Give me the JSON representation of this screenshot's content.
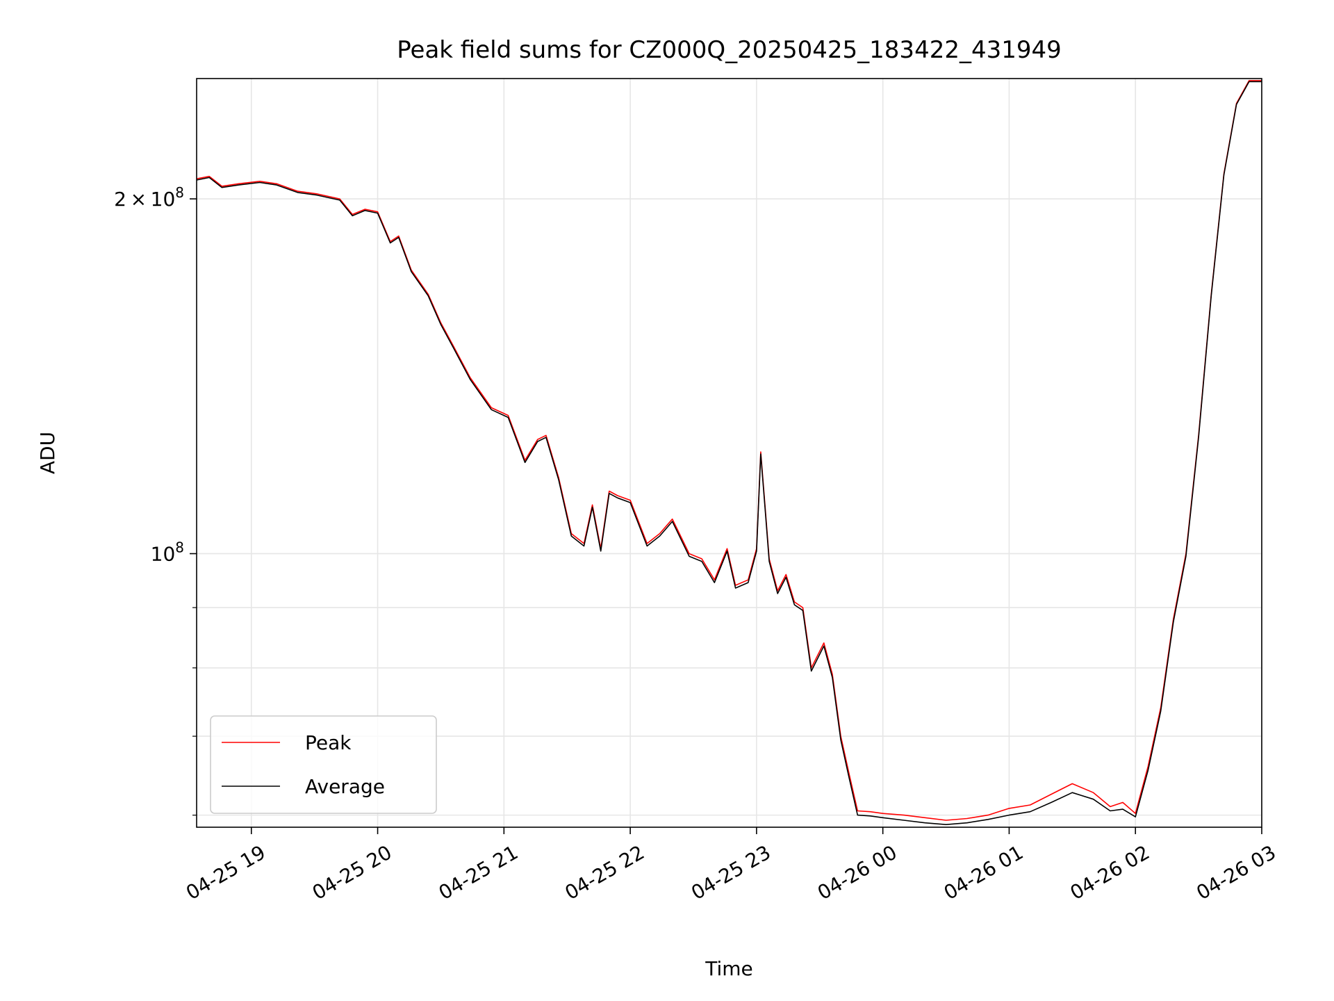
{
  "chart_data": {
    "type": "line",
    "title": "Peak field sums for CZ000Q_20250425_183422_431949",
    "xlabel": "Time",
    "ylabel": "ADU",
    "x_unit": "date-time (YYYY-MM-DD HH:MM)",
    "y_scale": "log",
    "xlim": [
      "2025-04-25 18:34",
      "2025-04-26 03:00"
    ],
    "ylim": [
      58600000,
      253000000
    ],
    "x_tick_labels": [
      "04-25 19",
      "04-25 20",
      "04-25 21",
      "04-25 22",
      "04-25 23",
      "04-26 00",
      "04-26 01",
      "04-26 02",
      "04-26 03"
    ],
    "x_ticks": [
      "2025-04-25 19:00",
      "2025-04-25 20:00",
      "2025-04-25 21:00",
      "2025-04-25 22:00",
      "2025-04-25 23:00",
      "2025-04-26 00:00",
      "2025-04-26 01:00",
      "2025-04-26 02:00",
      "2025-04-26 03:00"
    ],
    "y_major_ticks": [
      {
        "value": 100000000,
        "mantissa": "",
        "exponent": "8"
      },
      {
        "value": 200000000,
        "mantissa": "2",
        "exponent": "8"
      }
    ],
    "y_minor_ticks": [
      60000000,
      70000000,
      80000000,
      90000000
    ],
    "grid": true,
    "legend_position": "lower-left",
    "series": [
      {
        "name": "Peak",
        "color": "#ff0000",
        "x": [
          "2025-04-25 18:34",
          "2025-04-25 18:40",
          "2025-04-25 18:46",
          "2025-04-25 18:54",
          "2025-04-25 19:04",
          "2025-04-25 19:12",
          "2025-04-25 19:22",
          "2025-04-25 19:31",
          "2025-04-25 19:42",
          "2025-04-25 19:48",
          "2025-04-25 19:54",
          "2025-04-25 20:00",
          "2025-04-25 20:06",
          "2025-04-25 20:10",
          "2025-04-25 20:16",
          "2025-04-25 20:24",
          "2025-04-25 20:30",
          "2025-04-25 20:36",
          "2025-04-25 20:44",
          "2025-04-25 20:54",
          "2025-04-25 21:02",
          "2025-04-25 21:10",
          "2025-04-25 21:16",
          "2025-04-25 21:20",
          "2025-04-25 21:26",
          "2025-04-25 21:32",
          "2025-04-25 21:38",
          "2025-04-25 21:42",
          "2025-04-25 21:46",
          "2025-04-25 21:50",
          "2025-04-25 21:54",
          "2025-04-25 22:00",
          "2025-04-25 22:08",
          "2025-04-25 22:14",
          "2025-04-25 22:20",
          "2025-04-25 22:28",
          "2025-04-25 22:34",
          "2025-04-25 22:40",
          "2025-04-25 22:46",
          "2025-04-25 22:50",
          "2025-04-25 22:56",
          "2025-04-25 23:00",
          "2025-04-25 23:02",
          "2025-04-25 23:04",
          "2025-04-25 23:06",
          "2025-04-25 23:10",
          "2025-04-25 23:14",
          "2025-04-25 23:18",
          "2025-04-25 23:22",
          "2025-04-25 23:26",
          "2025-04-25 23:32",
          "2025-04-25 23:36",
          "2025-04-25 23:40",
          "2025-04-25 23:44",
          "2025-04-25 23:48",
          "2025-04-25 23:54",
          "2025-04-26 00:00",
          "2025-04-26 00:10",
          "2025-04-26 00:20",
          "2025-04-26 00:30",
          "2025-04-26 00:40",
          "2025-04-26 00:50",
          "2025-04-26 01:00",
          "2025-04-26 01:10",
          "2025-04-26 01:20",
          "2025-04-26 01:30",
          "2025-04-26 01:40",
          "2025-04-26 01:48",
          "2025-04-26 01:54",
          "2025-04-26 02:00",
          "2025-04-26 02:06",
          "2025-04-26 02:12",
          "2025-04-26 02:18",
          "2025-04-26 02:24",
          "2025-04-26 02:30",
          "2025-04-26 02:36",
          "2025-04-26 02:42",
          "2025-04-26 02:48",
          "2025-04-26 02:54",
          "2025-04-26 03:00"
        ],
        "y": [
          208000000,
          209000000,
          205000000,
          206000000,
          207000000,
          206000000,
          203000000,
          202000000,
          200000000,
          194000000,
          196000000,
          195000000,
          184000000,
          186000000,
          174000000,
          166000000,
          157000000,
          150000000,
          141000000,
          133000000,
          131000000,
          120000000,
          125000000,
          126000000,
          116000000,
          104000000,
          102000000,
          110000000,
          101000000,
          113000000,
          112000000,
          111000000,
          102000000,
          104000000,
          107000000,
          100000000,
          99000000,
          95000000,
          101000000,
          94000000,
          95000000,
          101000000,
          122000000,
          110000000,
          99000000,
          93000000,
          96000000,
          91000000,
          90000000,
          80000000,
          84000000,
          79000000,
          70000000,
          65000000,
          60500000,
          60400000,
          60200000,
          60000000,
          59700000,
          59400000,
          59600000,
          60000000,
          60800000,
          61200000,
          62500000,
          63800000,
          62700000,
          61000000,
          61500000,
          60200000,
          66000000,
          74000000,
          88000000,
          100000000,
          126000000,
          166000000,
          210000000,
          241000000,
          252000000,
          252000000
        ]
      },
      {
        "name": "Average",
        "color": "#000000",
        "x": [
          "2025-04-25 18:34",
          "2025-04-25 18:40",
          "2025-04-25 18:46",
          "2025-04-25 18:54",
          "2025-04-25 19:04",
          "2025-04-25 19:12",
          "2025-04-25 19:22",
          "2025-04-25 19:31",
          "2025-04-25 19:42",
          "2025-04-25 19:48",
          "2025-04-25 19:54",
          "2025-04-25 20:00",
          "2025-04-25 20:06",
          "2025-04-25 20:10",
          "2025-04-25 20:16",
          "2025-04-25 20:24",
          "2025-04-25 20:30",
          "2025-04-25 20:36",
          "2025-04-25 20:44",
          "2025-04-25 20:54",
          "2025-04-25 21:02",
          "2025-04-25 21:10",
          "2025-04-25 21:16",
          "2025-04-25 21:20",
          "2025-04-25 21:26",
          "2025-04-25 21:32",
          "2025-04-25 21:38",
          "2025-04-25 21:42",
          "2025-04-25 21:46",
          "2025-04-25 21:50",
          "2025-04-25 21:54",
          "2025-04-25 22:00",
          "2025-04-25 22:08",
          "2025-04-25 22:14",
          "2025-04-25 22:20",
          "2025-04-25 22:28",
          "2025-04-25 22:34",
          "2025-04-25 22:40",
          "2025-04-25 22:46",
          "2025-04-25 22:50",
          "2025-04-25 22:56",
          "2025-04-25 23:00",
          "2025-04-25 23:02",
          "2025-04-25 23:04",
          "2025-04-25 23:06",
          "2025-04-25 23:10",
          "2025-04-25 23:14",
          "2025-04-25 23:18",
          "2025-04-25 23:22",
          "2025-04-25 23:26",
          "2025-04-25 23:32",
          "2025-04-25 23:36",
          "2025-04-25 23:40",
          "2025-04-25 23:44",
          "2025-04-25 23:48",
          "2025-04-25 23:54",
          "2025-04-26 00:00",
          "2025-04-26 00:10",
          "2025-04-26 00:20",
          "2025-04-26 00:30",
          "2025-04-26 00:40",
          "2025-04-26 00:50",
          "2025-04-26 01:00",
          "2025-04-26 01:10",
          "2025-04-26 01:20",
          "2025-04-26 01:30",
          "2025-04-26 01:40",
          "2025-04-26 01:48",
          "2025-04-26 01:54",
          "2025-04-26 02:00",
          "2025-04-26 02:06",
          "2025-04-26 02:12",
          "2025-04-26 02:18",
          "2025-04-26 02:24",
          "2025-04-26 02:30",
          "2025-04-26 02:36",
          "2025-04-26 02:42",
          "2025-04-26 02:48",
          "2025-04-26 02:54",
          "2025-04-26 03:00"
        ],
        "y": [
          207500000,
          208500000,
          204500000,
          205500000,
          206500000,
          205500000,
          202500000,
          201500000,
          199500000,
          193500000,
          195500000,
          194500000,
          183500000,
          185500000,
          173500000,
          165500000,
          156500000,
          149500000,
          140500000,
          132500000,
          130500000,
          119500000,
          124500000,
          125500000,
          115500000,
          103500000,
          101500000,
          109500000,
          100500000,
          112500000,
          111500000,
          110500000,
          101500000,
          103500000,
          106500000,
          99500000,
          98500000,
          94500000,
          100500000,
          93500000,
          94500000,
          100500000,
          121500000,
          109500000,
          98500000,
          92500000,
          95500000,
          90500000,
          89500000,
          79500000,
          83500000,
          78500000,
          69500000,
          64500000,
          60000000,
          59900000,
          59700000,
          59400000,
          59100000,
          58900000,
          59100000,
          59500000,
          60000000,
          60400000,
          61500000,
          62700000,
          61900000,
          60500000,
          60700000,
          59800000,
          65500000,
          73500000,
          87500000,
          99500000,
          125500000,
          165500000,
          209500000,
          240500000,
          251500000,
          251500000
        ]
      }
    ]
  }
}
